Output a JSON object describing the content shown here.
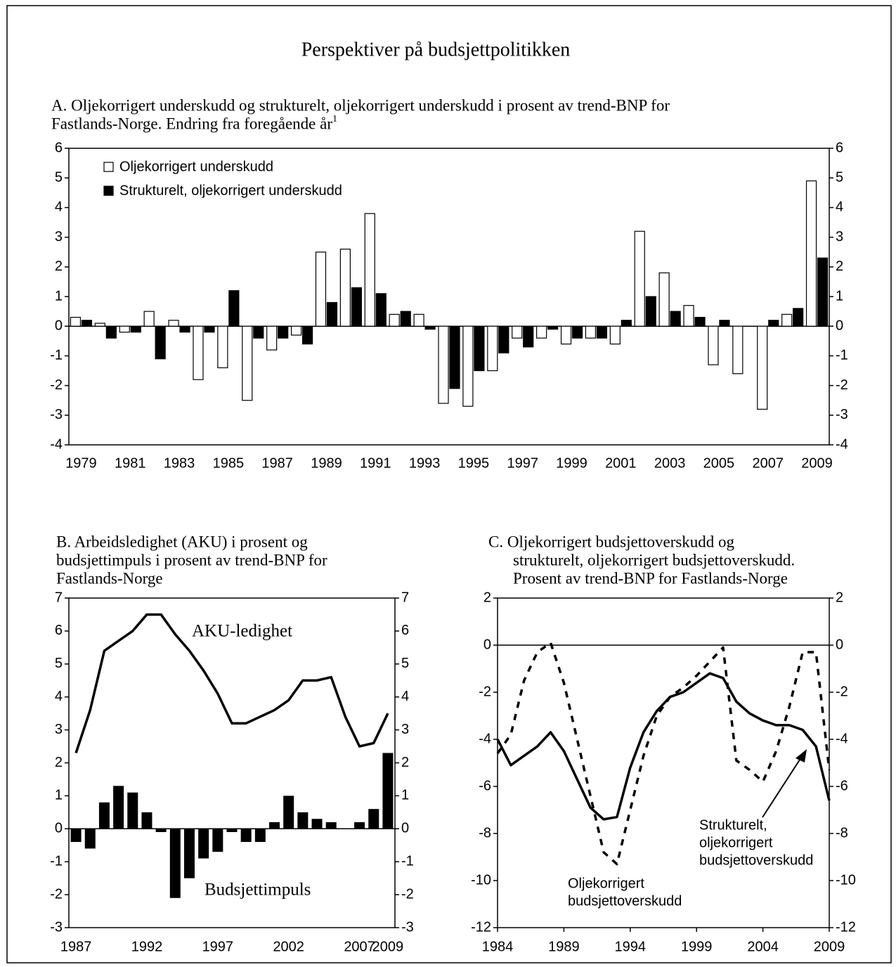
{
  "title": "Perspektiver på budsjettpolitikken",
  "chart_data": [
    {
      "type": "bar",
      "title": [
        "A. Oljekorrigert underskudd og strukturelt, oljekorrigert underskudd i prosent av trend-BNP for",
        "Fastlands-Norge. Endring fra foregående år"
      ],
      "title_note": "1",
      "categories": [
        "1979",
        null,
        "1981",
        null,
        "1983",
        null,
        "1985",
        null,
        "1987",
        null,
        "1989",
        null,
        "1991",
        null,
        "1993",
        null,
        "1995",
        null,
        "1997",
        null,
        "1999",
        null,
        "2001",
        null,
        "2003",
        null,
        "2005",
        null,
        "2007",
        null,
        "2009"
      ],
      "series": [
        {
          "name": "Oljekorrigert underskudd",
          "color": "#ffffff",
          "values": [
            0.3,
            0.1,
            -0.2,
            0.5,
            0.2,
            -1.8,
            -1.4,
            -2.5,
            -0.8,
            -0.3,
            2.5,
            2.6,
            3.8,
            0.4,
            0.4,
            -2.6,
            -2.7,
            -1.5,
            -0.4,
            -0.4,
            -0.6,
            -0.4,
            -0.6,
            3.2,
            1.8,
            0.7,
            -1.3,
            -1.6,
            -2.8,
            0.4,
            4.9
          ]
        },
        {
          "name": "Strukturelt, oljekorrigert underskudd",
          "color": "#000000",
          "values": [
            0.2,
            -0.4,
            -0.2,
            -1.1,
            -0.2,
            -0.2,
            1.2,
            -0.4,
            -0.4,
            -0.6,
            0.8,
            1.3,
            1.1,
            0.5,
            -0.1,
            -2.1,
            -1.5,
            -0.9,
            -0.7,
            -0.1,
            -0.4,
            -0.4,
            0.2,
            1.0,
            0.5,
            0.3,
            0.2,
            0,
            0.2,
            0.6,
            2.3
          ]
        }
      ],
      "ylim": [
        -4,
        6
      ],
      "yticks": [
        -4,
        -3,
        -2,
        -1,
        0,
        1,
        2,
        3,
        4,
        5,
        6
      ],
      "y2lim": [
        -4,
        6
      ],
      "y2ticks": [
        -4,
        -3,
        -2,
        -1,
        0,
        1,
        2,
        3,
        4,
        5,
        6
      ],
      "legend": "top-left"
    },
    {
      "type": "combo",
      "title": [
        "B.  Arbeidsledighet (AKU) i prosent og",
        "budsjettimpuls i prosent av trend-BNP for",
        "Fastlands-Norge"
      ],
      "categories": [
        "1987",
        null,
        null,
        null,
        null,
        "1992",
        null,
        null,
        null,
        null,
        "1997",
        null,
        null,
        null,
        null,
        "2002",
        null,
        null,
        null,
        null,
        "2007",
        null,
        "2009"
      ],
      "series": [
        {
          "name": "Budsjettimpuls",
          "kind": "bar",
          "color": "#000000",
          "values": [
            -0.4,
            -0.6,
            0.8,
            1.3,
            1.1,
            0.5,
            -0.1,
            -2.1,
            -1.5,
            -0.9,
            -0.7,
            -0.1,
            -0.4,
            -0.4,
            0.2,
            1.0,
            0.5,
            0.3,
            0.2,
            0,
            0.2,
            0.6,
            2.3
          ]
        },
        {
          "name": "AKU-ledighet",
          "kind": "line",
          "color": "#000000",
          "values": [
            2.3,
            3.6,
            5.4,
            5.7,
            6.0,
            6.5,
            6.5,
            5.9,
            5.4,
            4.8,
            4.1,
            3.2,
            3.2,
            3.4,
            3.6,
            3.9,
            4.5,
            4.5,
            4.6,
            3.4,
            2.5,
            2.6,
            3.5
          ]
        }
      ],
      "ylim": [
        -3,
        7
      ],
      "yticks": [
        -3,
        -2,
        -1,
        0,
        1,
        2,
        3,
        4,
        5,
        6,
        7
      ],
      "y2lim": [
        -3,
        7
      ],
      "y2ticks": [
        -3,
        -2,
        -1,
        0,
        1,
        2,
        3,
        4,
        5,
        6,
        7
      ]
    },
    {
      "type": "line",
      "title": [
        "C. Oljekorrigert budsjettoverskudd og",
        "strukturelt, oljekorrigert budsjettoverskudd.",
        "Prosent av trend-BNP for Fastlands-Norge"
      ],
      "x": [
        1984,
        1985,
        1986,
        1987,
        1988,
        1989,
        1990,
        1991,
        1992,
        1993,
        1994,
        1995,
        1996,
        1997,
        1998,
        1999,
        2000,
        2001,
        2002,
        2003,
        2004,
        2005,
        2006,
        2007,
        2008,
        2009
      ],
      "series": [
        {
          "color": "#000000",
          "dash": false,
          "values": [
            -4.0,
            -5.1,
            -4.7,
            -4.3,
            -3.7,
            -4.5,
            -5.7,
            -6.9,
            -7.4,
            -7.3,
            -5.2,
            -3.7,
            -2.8,
            -2.2,
            -2.0,
            -1.6,
            -1.2,
            -1.4,
            -2.4,
            -2.9,
            -3.2,
            -3.4,
            -3.4,
            -3.6,
            -4.3,
            -6.6
          ]
        },
        {
          "color": "#000000",
          "dash": true,
          "values": [
            -4.6,
            -3.8,
            -1.5,
            -0.3,
            0.1,
            -1.6,
            -4.0,
            -6.4,
            -8.8,
            -9.3,
            -7.0,
            -4.7,
            -3.0,
            -2.2,
            -1.8,
            -1.3,
            -0.7,
            -0.1,
            -4.9,
            -5.3,
            -5.8,
            -4.5,
            -2.6,
            -0.3,
            -0.3,
            -5.3
          ]
        }
      ],
      "annotations": [
        [
          "Oljekorrigert",
          "budsjettoverskudd"
        ],
        [
          "Strukturelt,",
          "oljekorrigert",
          "budsjettoverskudd"
        ]
      ],
      "xlim": [
        1984,
        2009
      ],
      "xticks": [
        1984,
        1989,
        1994,
        1999,
        2004,
        2009
      ],
      "ylim": [
        -12,
        2
      ],
      "yticks": [
        -12,
        -10,
        -8,
        -6,
        -4,
        -2,
        0,
        2
      ],
      "y2lim": [
        -12,
        2
      ],
      "y2ticks": [
        -12,
        -10,
        -8,
        -6,
        -4,
        -2,
        0,
        2
      ]
    }
  ]
}
